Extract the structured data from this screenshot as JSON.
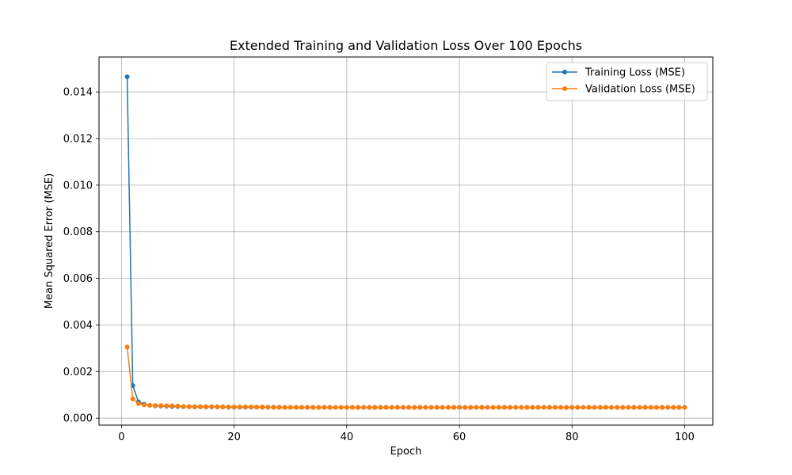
{
  "chart_data": {
    "type": "line",
    "title": "Extended Training and Validation Loss Over 100 Epochs",
    "xlabel": "Epoch",
    "ylabel": "Mean Squared Error (MSE)",
    "xlim": [
      -4,
      105
    ],
    "ylim": [
      -0.0003,
      0.0155
    ],
    "xticks": [
      0,
      20,
      40,
      60,
      80,
      100
    ],
    "xtick_labels": [
      "0",
      "20",
      "40",
      "60",
      "80",
      "100"
    ],
    "yticks": [
      0.0,
      0.002,
      0.004,
      0.006,
      0.008,
      0.01,
      0.012,
      0.014
    ],
    "ytick_labels": [
      "0.000",
      "0.002",
      "0.004",
      "0.006",
      "0.008",
      "0.010",
      "0.012",
      "0.014"
    ],
    "grid": true,
    "legend_position": "top-right",
    "series": [
      {
        "name": "Training Loss (MSE)",
        "color": "#1f77b4",
        "x_start": 1,
        "values": [
          0.01465,
          0.0014,
          0.0007,
          0.0006,
          0.00055,
          0.00053,
          0.00052,
          0.00051,
          0.0005,
          0.0005,
          0.00049,
          0.00049,
          0.00048,
          0.00048,
          0.00048,
          0.00048,
          0.00048,
          0.00048,
          0.00047,
          0.00047,
          0.00047,
          0.00047,
          0.00047,
          0.00047,
          0.00047,
          0.00047,
          0.00047,
          0.00047,
          0.00046,
          0.00046,
          0.00046,
          0.00046,
          0.00046,
          0.00046,
          0.00046,
          0.00046,
          0.00046,
          0.00046,
          0.00046,
          0.00046,
          0.00046,
          0.00046,
          0.00046,
          0.00046,
          0.00046,
          0.00046,
          0.00046,
          0.00046,
          0.00046,
          0.00046,
          0.00046,
          0.00046,
          0.00046,
          0.00046,
          0.00046,
          0.00046,
          0.00046,
          0.00046,
          0.00046,
          0.00046,
          0.00046,
          0.00046,
          0.00046,
          0.00046,
          0.00046,
          0.00046,
          0.00046,
          0.00046,
          0.00046,
          0.00046,
          0.00046,
          0.00046,
          0.00046,
          0.00046,
          0.00046,
          0.00046,
          0.00046,
          0.00046,
          0.00046,
          0.00046,
          0.00046,
          0.00046,
          0.00046,
          0.00046,
          0.00046,
          0.00046,
          0.00046,
          0.00046,
          0.00046,
          0.00046,
          0.00046,
          0.00046,
          0.00046,
          0.00046,
          0.00046,
          0.00046,
          0.00046,
          0.00046,
          0.00046,
          0.00046
        ]
      },
      {
        "name": "Validation Loss (MSE)",
        "color": "#ff7f0e",
        "x_start": 1,
        "values": [
          0.00305,
          0.00082,
          0.00062,
          0.00057,
          0.00055,
          0.00054,
          0.00054,
          0.00053,
          0.00053,
          0.00052,
          0.0005,
          0.0005,
          0.00049,
          0.00049,
          0.00049,
          0.00049,
          0.00049,
          0.00048,
          0.00048,
          0.00048,
          0.00048,
          0.00048,
          0.00048,
          0.00048,
          0.00048,
          0.00047,
          0.00046,
          0.00046,
          0.00046,
          0.00046,
          0.00046,
          0.00046,
          0.00046,
          0.00046,
          0.00046,
          0.00046,
          0.00046,
          0.00046,
          0.00046,
          0.00046,
          0.00046,
          0.00046,
          0.00046,
          0.00046,
          0.00046,
          0.00046,
          0.00046,
          0.00046,
          0.00046,
          0.00046,
          0.00046,
          0.00046,
          0.00046,
          0.00046,
          0.00046,
          0.00046,
          0.00046,
          0.00046,
          0.00046,
          0.00046,
          0.00046,
          0.00046,
          0.00046,
          0.00046,
          0.00046,
          0.00046,
          0.00046,
          0.00046,
          0.00046,
          0.00046,
          0.00046,
          0.00046,
          0.00046,
          0.00046,
          0.00046,
          0.00046,
          0.00046,
          0.00046,
          0.00046,
          0.00046,
          0.00046,
          0.00046,
          0.00046,
          0.00046,
          0.00046,
          0.00046,
          0.00046,
          0.00046,
          0.00046,
          0.00046,
          0.00046,
          0.00046,
          0.00046,
          0.00046,
          0.00046,
          0.00046,
          0.00046,
          0.00046,
          0.00046,
          0.00046
        ]
      }
    ]
  }
}
